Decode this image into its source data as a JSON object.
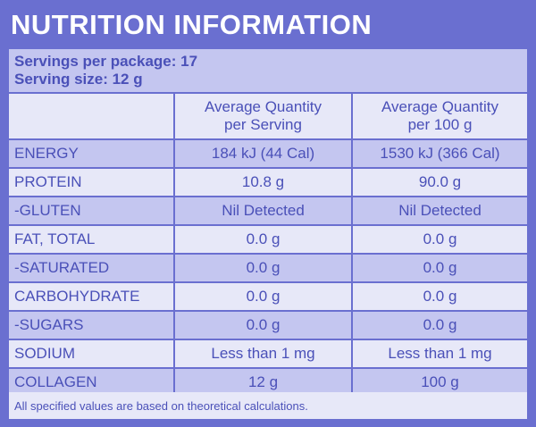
{
  "title": "NUTRITION INFORMATION",
  "servings_per_package": "Servings per package: 17",
  "serving_size": "Serving size: 12 g",
  "headers": [
    "",
    "Average Quantity\nper Serving",
    "Average Quantity\nper 100 g"
  ],
  "header_lines": {
    "col1_line1": "Average Quantity",
    "col1_line2": "per Serving",
    "col2_line1": "Average Quantity",
    "col2_line2": "per 100 g"
  },
  "rows": [
    {
      "name": "ENERGY",
      "per_serving": "184 kJ (44 Cal)",
      "per_100g": "1530 kJ (366 Cal)"
    },
    {
      "name": "PROTEIN",
      "per_serving": "10.8 g",
      "per_100g": "90.0 g"
    },
    {
      "name": "-GLUTEN",
      "per_serving": "Nil Detected",
      "per_100g": "Nil Detected"
    },
    {
      "name": "FAT, TOTAL",
      "per_serving": "0.0 g",
      "per_100g": "0.0 g"
    },
    {
      "name": "-SATURATED",
      "per_serving": "0.0 g",
      "per_100g": "0.0 g"
    },
    {
      "name": "CARBOHYDRATE",
      "per_serving": "0.0 g",
      "per_100g": "0.0 g"
    },
    {
      "name": "-SUGARS",
      "per_serving": "0.0 g",
      "per_100g": "0.0 g"
    },
    {
      "name": "SODIUM",
      "per_serving": "Less than 1 mg",
      "per_100g": "Less than 1 mg"
    },
    {
      "name": "COLLAGEN",
      "per_serving": "12 g",
      "per_100g": "100 g"
    }
  ],
  "footer": "All specified values are based on theoretical calculations.",
  "colors": {
    "header_bg": "#6a6fd0",
    "text": "#4a50b8",
    "band_dark": "#c4c6f0",
    "band_light": "#e7e8f8"
  }
}
